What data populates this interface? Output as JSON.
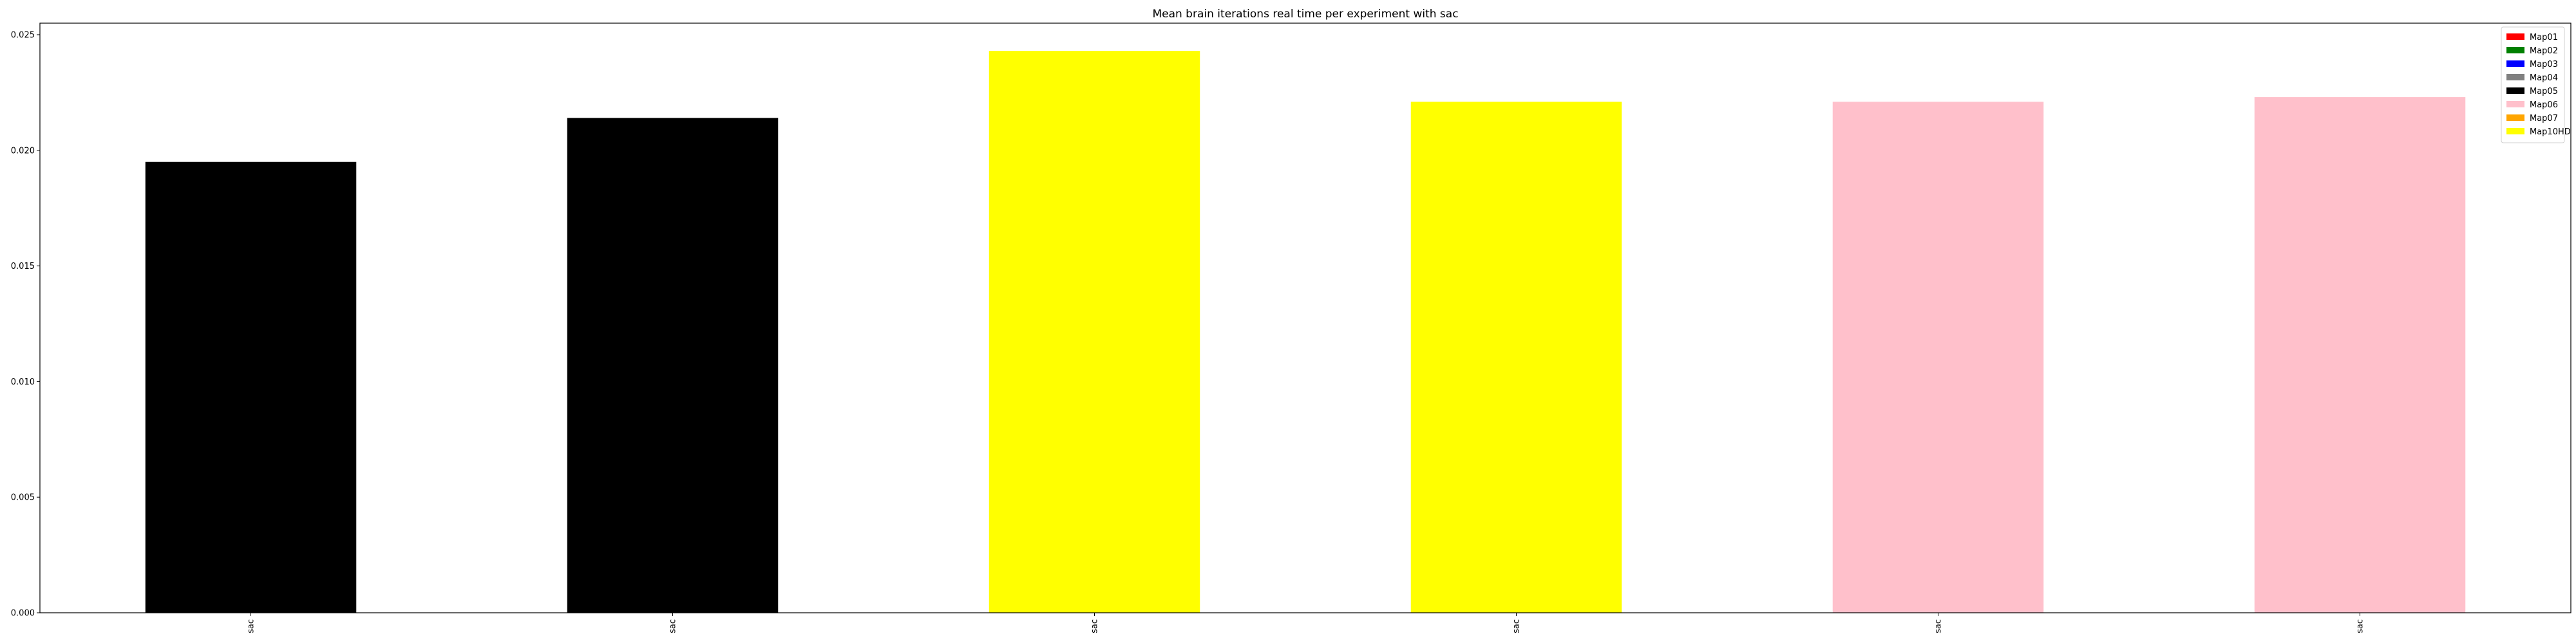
{
  "chart_data": {
    "type": "bar",
    "title": "Mean brain iterations real time per experiment with sac",
    "xlabel": "",
    "ylabel": "",
    "categories": [
      "sac",
      "sac",
      "sac",
      "sac",
      "sac",
      "sac"
    ],
    "values": [
      0.0195,
      0.0214,
      0.0243,
      0.0221,
      0.0221,
      0.0223
    ],
    "bar_colors": [
      "#000000",
      "#000000",
      "#ffff00",
      "#ffff00",
      "#ffc0cb",
      "#ffc0cb"
    ],
    "ylim": [
      0,
      0.0255
    ],
    "yticks": [
      0.0,
      0.005,
      0.01,
      0.015,
      0.02,
      0.025
    ],
    "ytick_labels": [
      "0.000",
      "0.005",
      "0.010",
      "0.015",
      "0.020",
      "0.025"
    ],
    "grid": false,
    "legend": {
      "placement": "top-right",
      "entries": [
        {
          "name": "Map01",
          "color": "#ff0000"
        },
        {
          "name": "Map02",
          "color": "#008000"
        },
        {
          "name": "Map03",
          "color": "#0000ff"
        },
        {
          "name": "Map04",
          "color": "#808080"
        },
        {
          "name": "Map05",
          "color": "#000000"
        },
        {
          "name": "Map06",
          "color": "#ffc0cb"
        },
        {
          "name": "Map07",
          "color": "#ffa500"
        },
        {
          "name": "Map10HD",
          "color": "#ffff00"
        }
      ]
    }
  }
}
